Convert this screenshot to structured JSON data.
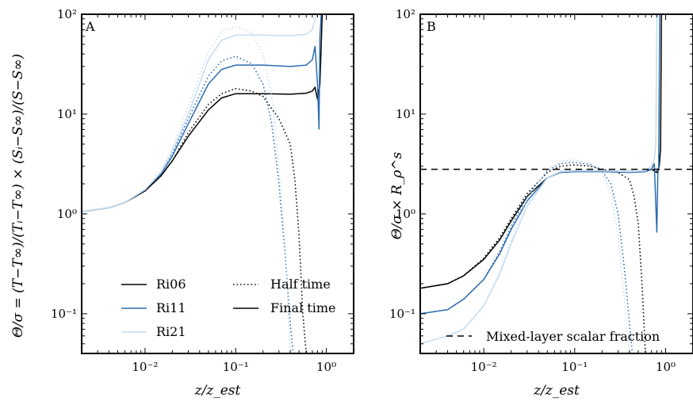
{
  "chart_data": [
    {
      "panel": "A",
      "type": "line",
      "xscale": "log",
      "yscale": "log",
      "xlim": [
        0.002,
        2
      ],
      "ylim": [
        0.04,
        100
      ],
      "xlabel": "z/z_est",
      "ylabel": "Θ/σ = (T−T∞)/(Tᵢ−T∞) × (Sᵢ−S∞)/(S−S∞)",
      "xticks": [
        {
          "v": 0.01,
          "label": "10⁻²"
        },
        {
          "v": 0.1,
          "label": "10⁻¹"
        },
        {
          "v": 1,
          "label": "10⁰"
        }
      ],
      "yticks": [
        {
          "v": 0.1,
          "label": "10⁻¹"
        },
        {
          "v": 1,
          "label": "10⁰"
        },
        {
          "v": 10,
          "label": "10¹"
        },
        {
          "v": 100,
          "label": "10²"
        }
      ],
      "legend_placement": "lower-center",
      "legend": {
        "runs": [
          {
            "name": "Ri06",
            "color": "#000000"
          },
          {
            "name": "Ri11",
            "color": "#2b6cb0"
          },
          {
            "name": "Ri21",
            "color": "#c6dcef"
          }
        ],
        "styles": [
          {
            "name": "Half time",
            "dash": "dotted"
          },
          {
            "name": "Final time",
            "dash": "solid"
          }
        ]
      },
      "series": [
        {
          "run": "Ri06",
          "time": "Final time",
          "color": "#000000",
          "dash": "solid",
          "x": [
            0.002,
            0.004,
            0.006,
            0.01,
            0.015,
            0.02,
            0.03,
            0.05,
            0.07,
            0.1,
            0.2,
            0.4,
            0.6,
            0.7,
            0.75,
            0.8,
            0.85,
            0.9
          ],
          "y": [
            1.05,
            1.15,
            1.3,
            1.7,
            2.4,
            3.4,
            6,
            11,
            14.5,
            16,
            16,
            15.8,
            16.2,
            17,
            18.5,
            14,
            20,
            100
          ]
        },
        {
          "run": "Ri06",
          "time": "Half time",
          "color": "#000000",
          "dash": "dotted",
          "x": [
            0.002,
            0.004,
            0.006,
            0.01,
            0.015,
            0.02,
            0.03,
            0.05,
            0.07,
            0.1,
            0.15,
            0.2,
            0.3,
            0.4,
            0.45,
            0.5,
            0.55,
            0.6
          ],
          "y": [
            1.05,
            1.15,
            1.3,
            1.7,
            2.4,
            3.4,
            6.5,
            12.5,
            16,
            18,
            17,
            15,
            9,
            5,
            2.2,
            0.6,
            0.1,
            0.04
          ]
        },
        {
          "run": "Ri11",
          "time": "Final time",
          "color": "#2b6cb0",
          "dash": "solid",
          "x": [
            0.002,
            0.004,
            0.006,
            0.01,
            0.015,
            0.02,
            0.03,
            0.05,
            0.07,
            0.1,
            0.2,
            0.4,
            0.6,
            0.7,
            0.75,
            0.8,
            0.83,
            0.85,
            0.88
          ],
          "y": [
            1.05,
            1.15,
            1.3,
            1.75,
            2.5,
            3.8,
            8,
            20,
            28,
            31,
            31,
            30,
            31,
            35,
            48,
            20,
            7,
            60,
            100
          ]
        },
        {
          "run": "Ri11",
          "time": "Half time",
          "color": "#2b6cb0",
          "dash": "dotted",
          "x": [
            0.002,
            0.004,
            0.006,
            0.01,
            0.015,
            0.02,
            0.03,
            0.05,
            0.07,
            0.1,
            0.15,
            0.2,
            0.25,
            0.3,
            0.35,
            0.4,
            0.43
          ],
          "y": [
            1.05,
            1.15,
            1.3,
            1.75,
            2.6,
            4,
            9,
            24,
            34,
            38,
            32,
            20,
            8,
            2,
            0.4,
            0.08,
            0.04
          ]
        },
        {
          "run": "Ri21",
          "time": "Final time",
          "color": "#c6dcef",
          "dash": "solid",
          "x": [
            0.002,
            0.004,
            0.006,
            0.01,
            0.015,
            0.02,
            0.03,
            0.05,
            0.07,
            0.1,
            0.2,
            0.4,
            0.6,
            0.7,
            0.75,
            0.8
          ],
          "y": [
            1.05,
            1.15,
            1.3,
            1.75,
            2.6,
            4.2,
            10,
            35,
            55,
            62,
            62,
            61,
            63,
            70,
            90,
            100
          ]
        },
        {
          "run": "Ri21",
          "time": "Half time",
          "color": "#c6dcef",
          "dash": "dotted",
          "x": [
            0.002,
            0.004,
            0.006,
            0.01,
            0.015,
            0.02,
            0.03,
            0.05,
            0.07,
            0.1,
            0.15,
            0.2,
            0.25,
            0.3,
            0.35,
            0.4
          ],
          "y": [
            1.05,
            1.15,
            1.3,
            1.75,
            2.7,
            4.5,
            12,
            42,
            68,
            75,
            65,
            40,
            15,
            3,
            0.5,
            0.04
          ]
        }
      ]
    },
    {
      "panel": "B",
      "type": "line",
      "xscale": "log",
      "yscale": "log",
      "xlim": [
        0.002,
        2
      ],
      "ylim": [
        0.04,
        100
      ],
      "xlabel": "z/z_est",
      "ylabel": "Θ/σ × R_ρ^s",
      "xticks": [
        {
          "v": 0.01,
          "label": "10⁻²"
        },
        {
          "v": 0.1,
          "label": "10⁻¹"
        },
        {
          "v": 1,
          "label": "10⁰"
        }
      ],
      "yticks": [
        {
          "v": 0.1,
          "label": "10⁻¹"
        },
        {
          "v": 1,
          "label": "10⁰"
        },
        {
          "v": 10,
          "label": "10¹"
        },
        {
          "v": 100,
          "label": "10²"
        }
      ],
      "reference_line": {
        "y": 2.8,
        "label": "Mixed-layer scalar fraction",
        "dash": "dashed",
        "color": "#000000"
      },
      "legend_placement": "lower-right",
      "series": [
        {
          "run": "Ri06",
          "time": "Final time",
          "color": "#000000",
          "dash": "solid",
          "x": [
            0.002,
            0.004,
            0.006,
            0.01,
            0.015,
            0.02,
            0.03,
            0.05,
            0.07,
            0.1,
            0.2,
            0.4,
            0.6,
            0.7,
            0.8,
            0.85,
            0.88,
            0.9
          ],
          "y": [
            0.18,
            0.2,
            0.24,
            0.35,
            0.55,
            0.85,
            1.5,
            2.3,
            2.65,
            2.7,
            2.7,
            2.65,
            2.7,
            2.8,
            2.6,
            3,
            4.5,
            100
          ]
        },
        {
          "run": "Ri06",
          "time": "Half time",
          "color": "#000000",
          "dash": "dotted",
          "x": [
            0.002,
            0.004,
            0.006,
            0.01,
            0.015,
            0.02,
            0.03,
            0.05,
            0.07,
            0.1,
            0.15,
            0.2,
            0.3,
            0.4,
            0.45,
            0.5,
            0.55,
            0.6
          ],
          "y": [
            0.18,
            0.2,
            0.24,
            0.36,
            0.58,
            0.9,
            1.6,
            2.6,
            3,
            3.1,
            3,
            2.8,
            2.6,
            2.2,
            1.5,
            0.8,
            0.2,
            0.04
          ]
        },
        {
          "run": "Ri11",
          "time": "Final time",
          "color": "#2b6cb0",
          "dash": "solid",
          "x": [
            0.002,
            0.004,
            0.006,
            0.01,
            0.015,
            0.02,
            0.03,
            0.05,
            0.07,
            0.1,
            0.2,
            0.4,
            0.6,
            0.7,
            0.75,
            0.8,
            0.82,
            0.84,
            0.86
          ],
          "y": [
            0.1,
            0.11,
            0.14,
            0.22,
            0.4,
            0.7,
            1.35,
            2.3,
            2.6,
            2.65,
            2.65,
            2.6,
            2.65,
            2.8,
            3.2,
            0.65,
            2.5,
            3,
            100
          ]
        },
        {
          "run": "Ri11",
          "time": "Half time",
          "color": "#2b6cb0",
          "dash": "dotted",
          "x": [
            0.002,
            0.004,
            0.006,
            0.01,
            0.015,
            0.02,
            0.03,
            0.05,
            0.07,
            0.1,
            0.15,
            0.2,
            0.25,
            0.3,
            0.35,
            0.4,
            0.43
          ],
          "y": [
            0.1,
            0.11,
            0.14,
            0.22,
            0.42,
            0.75,
            1.5,
            2.7,
            3.2,
            3.3,
            3.1,
            2.7,
            2,
            1,
            0.3,
            0.08,
            0.04
          ]
        },
        {
          "run": "Ri21",
          "time": "Final time",
          "color": "#c6dcef",
          "dash": "solid",
          "x": [
            0.002,
            0.004,
            0.006,
            0.01,
            0.015,
            0.02,
            0.03,
            0.05,
            0.07,
            0.1,
            0.2,
            0.4,
            0.6,
            0.7,
            0.75,
            0.78,
            0.8
          ],
          "y": [
            0.05,
            0.06,
            0.07,
            0.12,
            0.25,
            0.5,
            1.2,
            2.3,
            2.65,
            2.7,
            2.7,
            2.65,
            2.7,
            3,
            3.5,
            5,
            100
          ]
        },
        {
          "run": "Ri21",
          "time": "Half time",
          "color": "#c6dcef",
          "dash": "dotted",
          "x": [
            0.002,
            0.004,
            0.006,
            0.01,
            0.015,
            0.02,
            0.03,
            0.05,
            0.07,
            0.1,
            0.15,
            0.2,
            0.25,
            0.3,
            0.35,
            0.4
          ],
          "y": [
            0.05,
            0.06,
            0.07,
            0.12,
            0.26,
            0.55,
            1.4,
            2.8,
            3.4,
            3.5,
            3.2,
            2.6,
            1.6,
            0.6,
            0.15,
            0.04
          ]
        }
      ]
    }
  ]
}
